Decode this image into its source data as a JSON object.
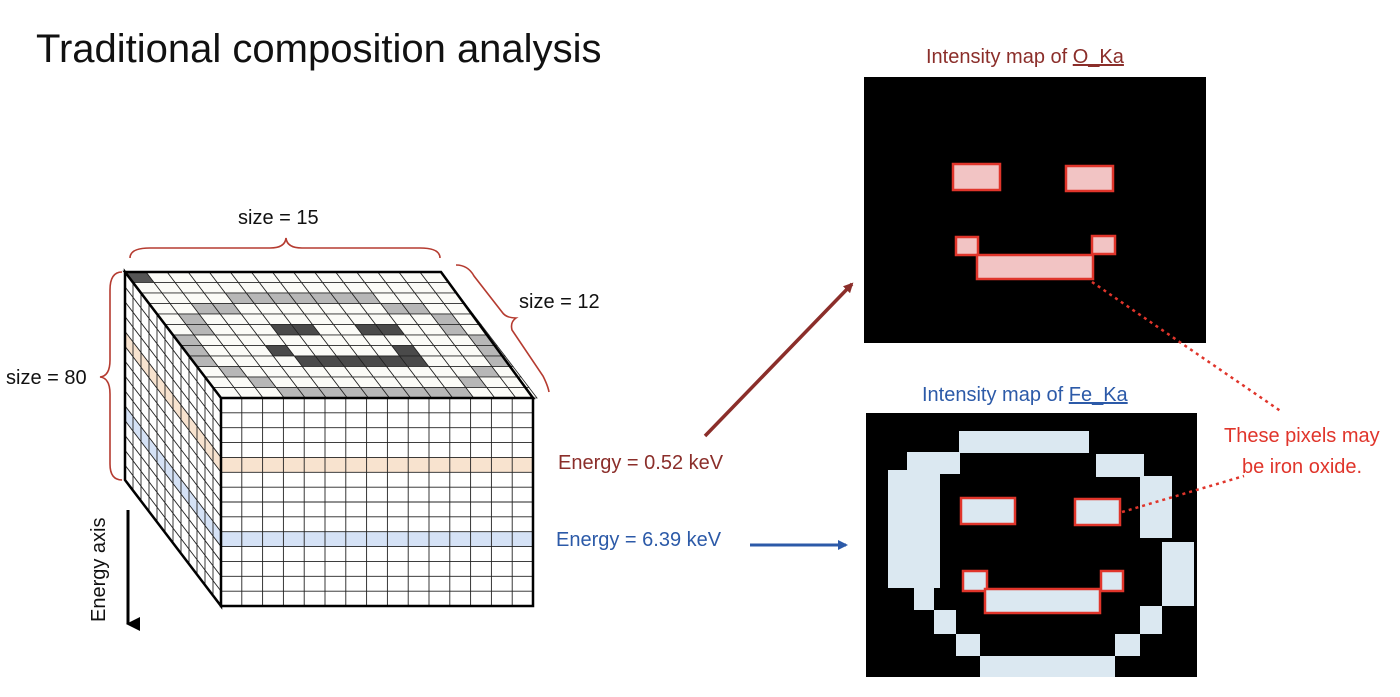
{
  "slide": {
    "title": "Traditional composition analysis"
  },
  "cube": {
    "width_label": "size = 15",
    "depth_label": "size = 12",
    "height_label": "size = 80",
    "axis_label": "Energy axis",
    "top_grid": {
      "cols": 15,
      "rows": 12,
      "pattern": [
        "3..............",
        "...............",
        "....1111111....",
        "..11.......11..",
        ".1...........1.",
        ".1...22..22..1.",
        "1.............1",
        "1...2.....2...1",
        "1....222222...1",
        ".1...........1.",
        "..1.........1..",
        "...111111111..."
      ],
      "legend": {
        "1": "light-gray",
        "2": "dark-gray",
        "3": "corner-dark"
      }
    },
    "bands": [
      {
        "name": "orange-band",
        "color": "#f8e3cf",
        "energy": "0.52 keV"
      },
      {
        "name": "blue-band",
        "color": "#d5e2f6",
        "energy": "6.39 keV"
      }
    ]
  },
  "energies": {
    "o_label": "Energy = 0.52 keV",
    "fe_label": "Energy = 6.39 keV"
  },
  "maps": {
    "o": {
      "title_prefix": "Intensity map of ",
      "title_element": "O_Ka"
    },
    "fe": {
      "title_prefix": "Intensity map of ",
      "title_element": "Fe_Ka"
    }
  },
  "annotation": {
    "line1": "These pixels may",
    "line2": "be iron oxide."
  },
  "colors": {
    "map_bg": "#000000",
    "pixel_fill": "#dbe8f1",
    "o_pixel_fill": "#f2c4c4",
    "highlight": "#e0352b",
    "o_color": "#8b2e2a",
    "fe_color": "#2c5aa8",
    "band_orange": "#f8e3cf",
    "band_blue": "#d5e2f6"
  }
}
